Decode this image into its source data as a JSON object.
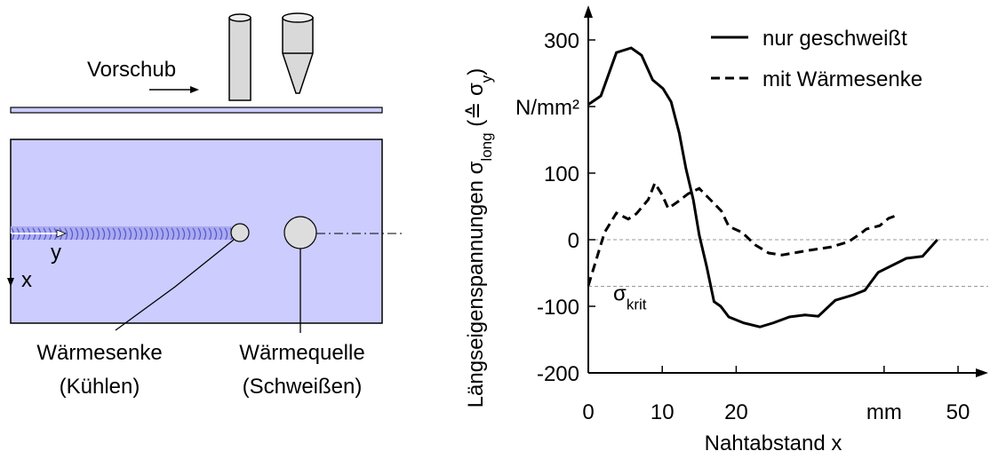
{
  "diagram": {
    "feed_label": "Vorschub",
    "y_axis": "y",
    "x_axis": "x",
    "sink_label": "Wärmesenke",
    "sink_note": "(Kühlen)",
    "source_label": "Wärmequelle",
    "source_note": "(Schweißen)"
  },
  "chart_data": {
    "type": "line",
    "ylabel_parts": [
      "Längseigenspannungen σ",
      "long",
      " (≙ σ",
      "y",
      ")"
    ],
    "xlabel": "Nahtabstand x",
    "xlim": [
      0,
      53
    ],
    "ylim": [
      -200,
      350
    ],
    "xticks": [
      0,
      10,
      20,
      {
        "value": 40,
        "label": "mm"
      },
      50
    ],
    "yticks": [
      -200,
      -100,
      0,
      100,
      {
        "value": 200,
        "label": "N/mm²"
      },
      300
    ],
    "legend": "top-right",
    "reference_lines": [
      {
        "value": 0
      },
      {
        "value": -70,
        "label": "σ",
        "sub": "krit"
      }
    ],
    "series": [
      {
        "name": "nur geschweißt",
        "color": "#000000",
        "dash": false,
        "x": [
          0,
          1.7,
          3.8,
          5.8,
          7.2,
          8.7,
          10.1,
          11.2,
          12.3,
          13.2,
          14.2,
          15,
          16,
          17,
          17.9,
          19,
          21,
          23.2,
          25,
          27.2,
          29.3,
          31.1,
          33.4,
          35.8,
          37.4,
          39.2,
          43,
          45.2,
          47.2
        ],
        "values": [
          203,
          216,
          281,
          288,
          277,
          240,
          227,
          207,
          160,
          107,
          60,
          7,
          -40,
          -93,
          -100,
          -116,
          -125,
          -131,
          -125,
          -116,
          -113,
          -115,
          -91,
          -83,
          -76,
          -49,
          -28,
          -25,
          0
        ]
      },
      {
        "name": "mit Wärmesenke",
        "color": "#000000",
        "dash": true,
        "x": [
          0,
          1.1,
          2.2,
          3.8,
          5.4,
          6.5,
          8.1,
          9,
          10,
          10.8,
          12.1,
          13.5,
          15,
          16.6,
          18,
          19,
          20.8,
          22.6,
          24.4,
          26.2,
          29.8,
          32.8,
          35.2,
          36.8,
          37.6,
          39.4,
          40.6,
          41.8
        ],
        "values": [
          -69,
          -29,
          11,
          40,
          31,
          39,
          60,
          85,
          67,
          47,
          57,
          69,
          77,
          59,
          43,
          20,
          11,
          -8,
          -20,
          -23,
          -16,
          -11,
          -3,
          9,
          16,
          21,
          32,
          37
        ]
      }
    ]
  }
}
